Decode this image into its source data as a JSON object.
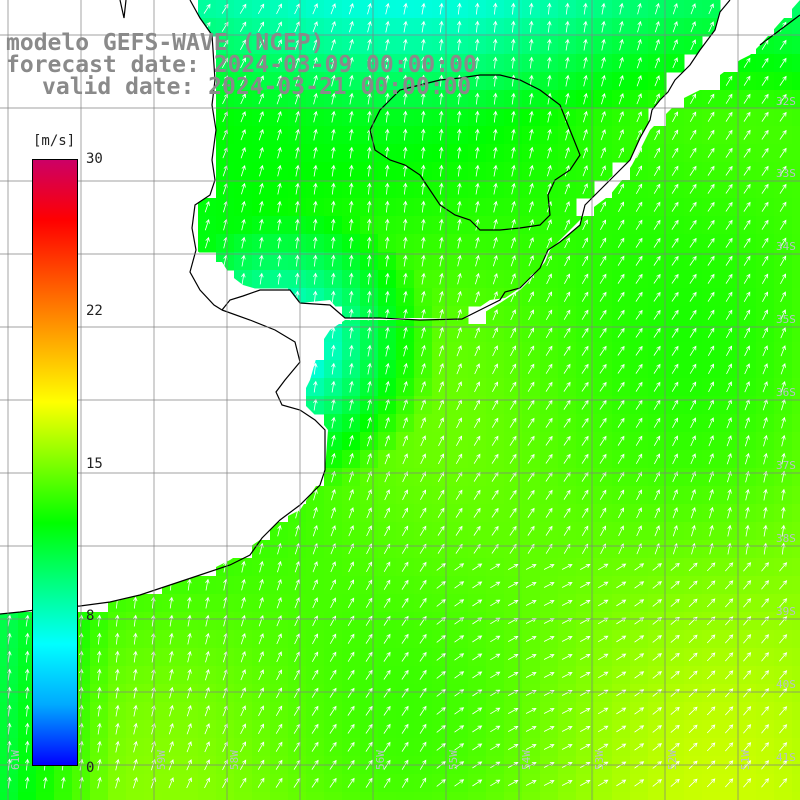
{
  "title": {
    "line1": "modelo GEFS-WAVE (NCEP)",
    "line2": "forecast date: 2024-03-09 00:00:00",
    "line3": "valid date: 2024-03-21 00:00:00"
  },
  "colorbar": {
    "unit": "[m/s]",
    "ticks": [
      "30",
      "22",
      "15",
      "8",
      "0"
    ],
    "colors": [
      "#0000ff",
      "#00aaff",
      "#00ffff",
      "#00ff80",
      "#00ff00",
      "#80ff00",
      "#ffff00",
      "#ffaa00",
      "#ff5500",
      "#ff0000",
      "#cc0066"
    ]
  },
  "axes": {
    "lat_labels": [
      "32S",
      "33S",
      "34S",
      "35S",
      "36S",
      "37S",
      "38S",
      "39S",
      "40S",
      "41S"
    ],
    "lon_labels": [
      "61W",
      "59W",
      "58W",
      "56W",
      "55W",
      "54W",
      "53W",
      "52W",
      "51W"
    ]
  },
  "map": {
    "land_color": "#ffffff",
    "coast_color": "#000000",
    "grid_color": "#808080",
    "arrow_color": "#ffffff"
  }
}
